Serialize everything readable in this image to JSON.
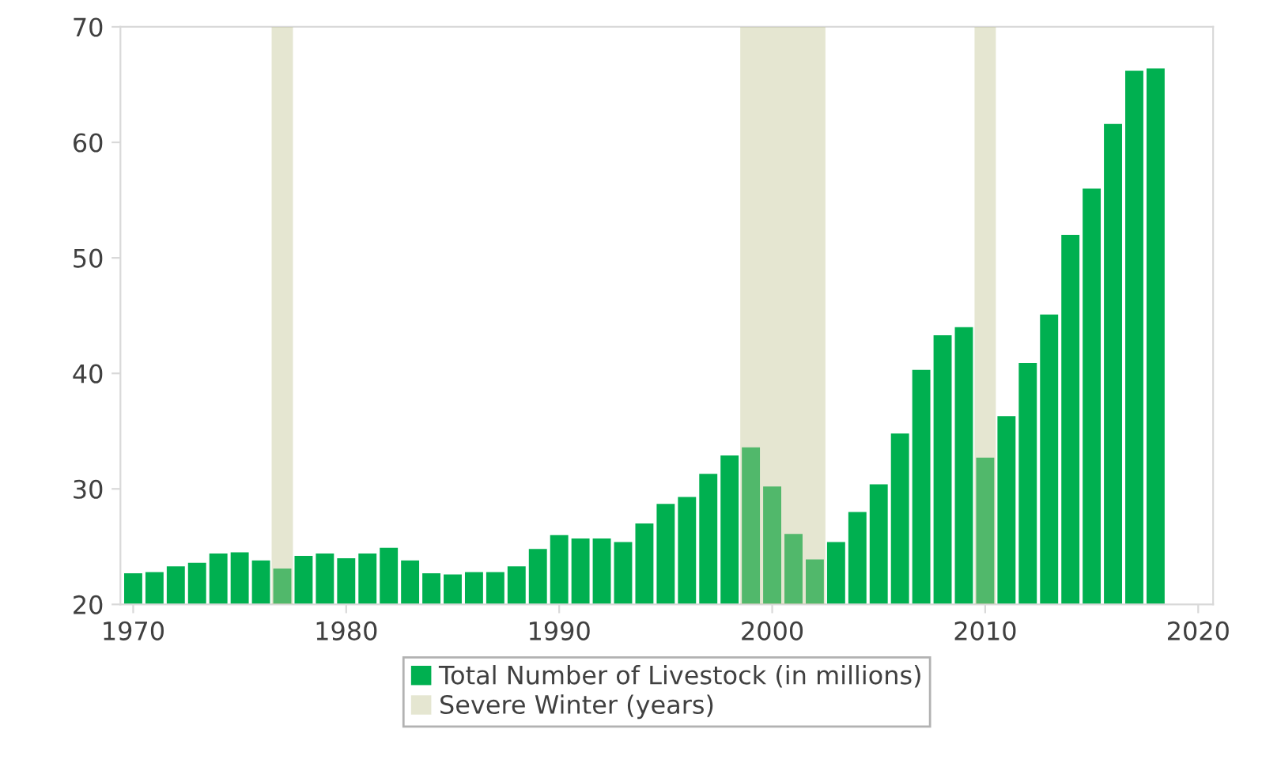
{
  "chart_data": {
    "type": "bar",
    "x": [
      1970,
      1971,
      1972,
      1973,
      1974,
      1975,
      1976,
      1977,
      1978,
      1979,
      1980,
      1981,
      1982,
      1983,
      1984,
      1985,
      1986,
      1987,
      1988,
      1989,
      1990,
      1991,
      1992,
      1993,
      1994,
      1995,
      1996,
      1997,
      1998,
      1999,
      2000,
      2001,
      2002,
      2003,
      2004,
      2005,
      2006,
      2007,
      2008,
      2009,
      2010,
      2011,
      2012,
      2013,
      2014,
      2015,
      2016,
      2017,
      2018
    ],
    "series": [
      {
        "name": "Total Number of Livestock (in millions)",
        "color": "#00b050",
        "values": [
          22.7,
          22.8,
          23.3,
          23.6,
          24.4,
          24.5,
          23.8,
          23.1,
          24.2,
          24.4,
          24.0,
          24.4,
          24.9,
          23.8,
          22.7,
          22.6,
          22.8,
          22.8,
          23.3,
          24.8,
          26.0,
          25.7,
          25.7,
          25.4,
          27.0,
          28.7,
          29.3,
          31.3,
          32.9,
          33.6,
          30.2,
          26.1,
          23.9,
          25.4,
          28.0,
          30.4,
          34.8,
          40.3,
          43.3,
          44.0,
          32.7,
          36.3,
          40.9,
          45.1,
          52.0,
          56.0,
          61.6,
          66.2,
          66.4
        ]
      }
    ],
    "bands": [
      {
        "axis": "x",
        "from": 1976.5,
        "to": 1977.5,
        "label": "Severe Winter (years)",
        "color": "#c1c392"
      },
      {
        "axis": "x",
        "from": 1998.5,
        "to": 2002.5,
        "color": "#c1c392"
      },
      {
        "axis": "x",
        "from": 2009.5,
        "to": 2010.5,
        "color": "#c1c392"
      }
    ],
    "xlim": [
      1969.4,
      2020.7
    ],
    "xticks": [
      1970,
      1980,
      1990,
      2000,
      2010,
      2020
    ],
    "ylim": [
      20,
      70
    ],
    "yticks": [
      20,
      30,
      40,
      50,
      60,
      70
    ],
    "grid": false,
    "legend": "bottom"
  }
}
